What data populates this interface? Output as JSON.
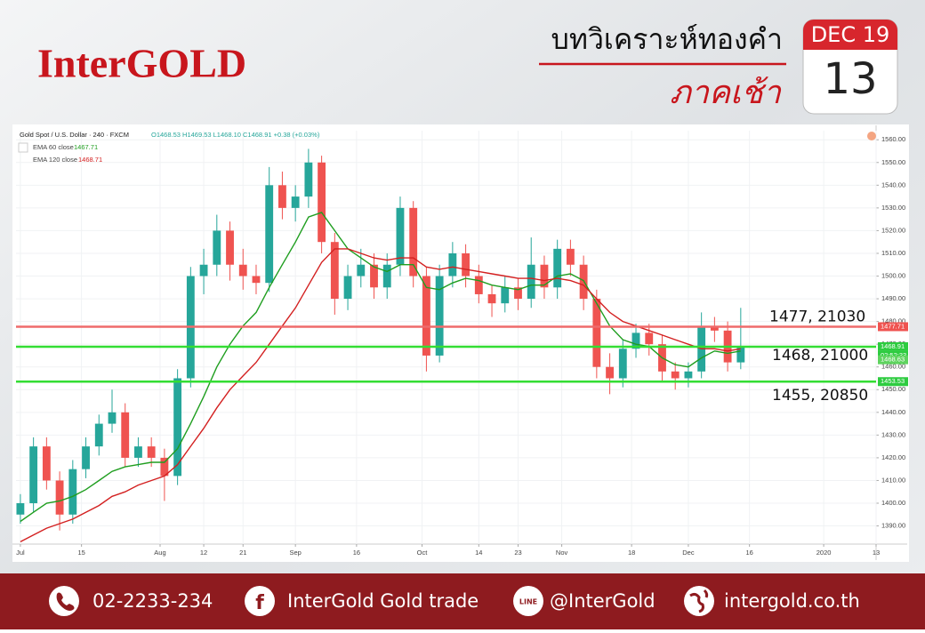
{
  "header": {
    "logo": "InterGOLD",
    "title": "บทวิเคราะห์ทองคำ",
    "subtitle": "ภาคเช้า"
  },
  "calendar": {
    "month": "DEC 19",
    "day": "13"
  },
  "chart_data": {
    "type": "candlestick",
    "title": "Gold Spot / U.S. Dollar · 240 · FXCM",
    "ohlc_text": "O1468.53 H1469.53 L1468.10 C1468.91 +0.38 (+0.03%)",
    "x": [
      0,
      3,
      6,
      9,
      12,
      15,
      18,
      21,
      24,
      27,
      30,
      33,
      36,
      39,
      42,
      45,
      48,
      51,
      54,
      57,
      60,
      63,
      66,
      69,
      72,
      75,
      78,
      81,
      84,
      87,
      90,
      93,
      96,
      99,
      102,
      105,
      108,
      111,
      114,
      117,
      120,
      123,
      126,
      129,
      132,
      135,
      138,
      141,
      144,
      147,
      150,
      153,
      156,
      159,
      162,
      165
    ],
    "open": [
      1395,
      1400,
      1425,
      1410,
      1395,
      1415,
      1425,
      1435,
      1440,
      1420,
      1425,
      1420,
      1412,
      1455,
      1500,
      1505,
      1520,
      1505,
      1500,
      1497,
      1540,
      1530,
      1535,
      1550,
      1515,
      1490,
      1500,
      1505,
      1495,
      1505,
      1530,
      1500,
      1465,
      1500,
      1510,
      1500,
      1492,
      1488,
      1495,
      1490,
      1505,
      1495,
      1512,
      1505,
      1490,
      1460,
      1455,
      1468,
      1475,
      1470,
      1458,
      1455,
      1458,
      1478,
      1476,
      1462
    ],
    "high": [
      1404,
      1429,
      1429,
      1414,
      1419,
      1429,
      1439,
      1450,
      1444,
      1429,
      1429,
      1424,
      1459,
      1504,
      1512,
      1527,
      1524,
      1512,
      1505,
      1548,
      1546,
      1540,
      1556,
      1553,
      1519,
      1505,
      1512,
      1510,
      1510,
      1535,
      1533,
      1504,
      1505,
      1515,
      1514,
      1505,
      1496,
      1500,
      1499,
      1517,
      1509,
      1516,
      1516,
      1509,
      1494,
      1466,
      1472,
      1479,
      1479,
      1474,
      1462,
      1462,
      1484,
      1482,
      1480,
      1486
    ],
    "low": [
      1391,
      1396,
      1406,
      1388,
      1391,
      1411,
      1421,
      1431,
      1416,
      1416,
      1416,
      1401,
      1408,
      1451,
      1492,
      1500,
      1498,
      1494,
      1492,
      1493,
      1525,
      1524,
      1530,
      1510,
      1483,
      1485,
      1495,
      1490,
      1490,
      1500,
      1495,
      1458,
      1462,
      1495,
      1495,
      1488,
      1482,
      1484,
      1485,
      1486,
      1490,
      1490,
      1500,
      1485,
      1455,
      1448,
      1451,
      1464,
      1465,
      1454,
      1450,
      1451,
      1455,
      1471,
      1458,
      1459
    ],
    "close": [
      1400,
      1425,
      1410,
      1395,
      1415,
      1425,
      1435,
      1440,
      1420,
      1425,
      1420,
      1412,
      1455,
      1500,
      1505,
      1520,
      1505,
      1500,
      1497,
      1540,
      1530,
      1535,
      1550,
      1515,
      1490,
      1500,
      1505,
      1495,
      1505,
      1530,
      1500,
      1465,
      1500,
      1510,
      1500,
      1492,
      1488,
      1495,
      1490,
      1505,
      1495,
      1512,
      1505,
      1490,
      1460,
      1455,
      1468,
      1475,
      1470,
      1458,
      1455,
      1458,
      1478,
      1476,
      1462,
      1469
    ],
    "up_color": "#26a69a",
    "down_color": "#ef5350",
    "series": [
      {
        "name": "EMA 60 close",
        "color": "#1f9e1f",
        "legend_value": 1467.71,
        "values": [
          1392,
          1396,
          1400,
          1401,
          1403,
          1406,
          1410,
          1414,
          1416,
          1417,
          1418,
          1418,
          1424,
          1435,
          1447,
          1460,
          1470,
          1478,
          1484,
          1495,
          1505,
          1515,
          1526,
          1528,
          1520,
          1512,
          1508,
          1504,
          1502,
          1505,
          1505,
          1495,
          1494,
          1497,
          1499,
          1498,
          1496,
          1495,
          1494,
          1496,
          1496,
          1500,
          1501,
          1498,
          1488,
          1478,
          1472,
          1470,
          1469,
          1464,
          1461,
          1460,
          1464,
          1467,
          1466,
          1467
        ]
      },
      {
        "name": "EMA 120 close",
        "color": "#d32020",
        "legend_value": 1468.71,
        "values": [
          1383,
          1386,
          1389,
          1391,
          1393,
          1396,
          1399,
          1403,
          1405,
          1408,
          1410,
          1412,
          1417,
          1425,
          1433,
          1442,
          1450,
          1456,
          1462,
          1470,
          1478,
          1486,
          1496,
          1506,
          1512,
          1512,
          1510,
          1508,
          1507,
          1508,
          1508,
          1504,
          1503,
          1504,
          1503,
          1502,
          1501,
          1500,
          1499,
          1499,
          1498,
          1499,
          1498,
          1496,
          1490,
          1484,
          1480,
          1478,
          1476,
          1474,
          1472,
          1470,
          1468,
          1468,
          1467,
          1468
        ]
      }
    ],
    "levels": [
      {
        "value": 1477.71,
        "color": "#ef6b6b",
        "annotation": "1477, 21030"
      },
      {
        "value": 1468.91,
        "color": "#33dd33",
        "annotation": "1468, 21000"
      },
      {
        "value": 1453.53,
        "color": "#33dd33",
        "annotation": "1455, 20850"
      }
    ],
    "countdown": "02:52:33",
    "bid_tag": 1468.63,
    "xlim": [
      -1,
      196
    ],
    "xticks": [
      {
        "value": 0,
        "label": "Jul"
      },
      {
        "value": 14,
        "label": "15"
      },
      {
        "value": 32,
        "label": "Aug"
      },
      {
        "value": 42,
        "label": "12"
      },
      {
        "value": 51,
        "label": "21"
      },
      {
        "value": 63,
        "label": "Sep"
      },
      {
        "value": 77,
        "label": "16"
      },
      {
        "value": 92,
        "label": "Oct"
      },
      {
        "value": 105,
        "label": "14"
      },
      {
        "value": 114,
        "label": "23"
      },
      {
        "value": 124,
        "label": "Nov"
      },
      {
        "value": 140,
        "label": "18"
      },
      {
        "value": 153,
        "label": "Dec"
      },
      {
        "value": 167,
        "label": "16"
      },
      {
        "value": 184,
        "label": "2020"
      },
      {
        "value": 196,
        "label": "13"
      }
    ],
    "ylim": [
      1382,
      1564
    ],
    "yticks": [
      {
        "value": 1390,
        "label": "1390.00"
      },
      {
        "value": 1400,
        "label": "1400.00"
      },
      {
        "value": 1410,
        "label": "1410.00"
      },
      {
        "value": 1420,
        "label": "1420.00"
      },
      {
        "value": 1430,
        "label": "1430.00"
      },
      {
        "value": 1440,
        "label": "1440.00"
      },
      {
        "value": 1450,
        "label": "1450.00"
      },
      {
        "value": 1460,
        "label": "1460.00"
      },
      {
        "value": 1470,
        "label": "1470.00"
      },
      {
        "value": 1480,
        "label": "1480.00"
      },
      {
        "value": 1490,
        "label": "1490.00"
      },
      {
        "value": 1500,
        "label": "1500.00"
      },
      {
        "value": 1510,
        "label": "1510.00"
      },
      {
        "value": 1520,
        "label": "1520.00"
      },
      {
        "value": 1530,
        "label": "1530.00"
      },
      {
        "value": 1540,
        "label": "1540.00"
      },
      {
        "value": 1550,
        "label": "1550.00"
      },
      {
        "value": 1560,
        "label": "1560.00"
      }
    ],
    "grid": true
  },
  "footer": {
    "phone": "02-2233-234",
    "facebook": "InterGold Gold trade",
    "line": "@InterGold",
    "website": "intergold.co.th"
  }
}
